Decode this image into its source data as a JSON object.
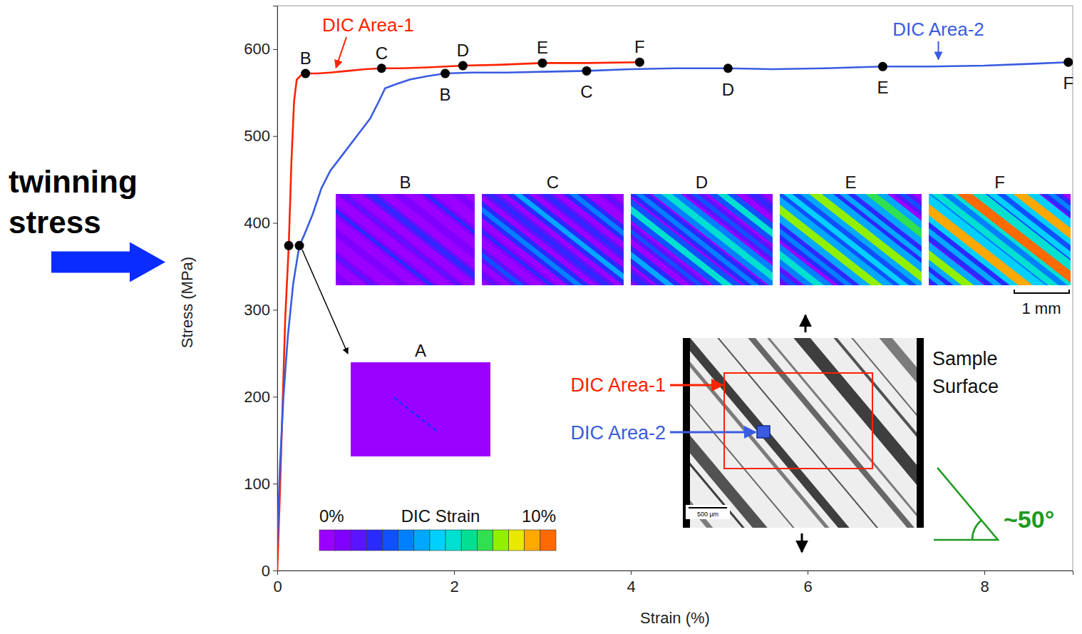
{
  "chart_data": {
    "type": "line",
    "xlabel": "Strain (%)",
    "ylabel": "Stress (MPa)",
    "xlim": [
      0,
      9
    ],
    "ylim": [
      0,
      650
    ],
    "xticks": [
      0,
      2,
      4,
      6,
      8
    ],
    "yticks": [
      0,
      100,
      200,
      300,
      400,
      500,
      600
    ],
    "series": [
      {
        "name": "DIC Area-1",
        "color": "#ff2200",
        "x": [
          0,
          0.03,
          0.06,
          0.09,
          0.13,
          0.16,
          0.19,
          0.22,
          0.27,
          0.32,
          0.45,
          0.6,
          0.8,
          1.0,
          1.18,
          1.4,
          1.7,
          2.1,
          2.5,
          3.0,
          3.5,
          4.1
        ],
        "values": [
          0,
          90,
          190,
          290,
          374,
          470,
          540,
          565,
          570,
          572,
          572,
          573,
          575,
          577,
          578,
          578,
          579,
          581,
          582,
          584,
          584,
          585
        ],
        "markers": [
          {
            "x": 0.13,
            "y": 374
          },
          {
            "label": "B",
            "x": 0.32,
            "y": 572
          },
          {
            "label": "C",
            "x": 1.18,
            "y": 578
          },
          {
            "label": "D",
            "x": 2.1,
            "y": 581
          },
          {
            "label": "E",
            "x": 3.0,
            "y": 584
          },
          {
            "label": "F",
            "x": 4.1,
            "y": 585
          }
        ]
      },
      {
        "name": "DIC Area-2",
        "color": "#3a5ce0",
        "x": [
          0,
          0.03,
          0.07,
          0.12,
          0.18,
          0.25,
          0.3,
          0.4,
          0.5,
          0.6,
          0.75,
          0.9,
          1.05,
          1.15,
          1.22,
          1.35,
          1.5,
          1.7,
          1.9,
          2.2,
          2.6,
          3.0,
          3.5,
          4.0,
          4.5,
          5.1,
          5.6,
          6.2,
          6.85,
          7.4,
          8.0,
          8.5,
          8.95
        ],
        "values": [
          30,
          120,
          200,
          270,
          330,
          374,
          385,
          410,
          440,
          460,
          480,
          500,
          520,
          540,
          555,
          560,
          565,
          569,
          572,
          573,
          573,
          574,
          575,
          577,
          578,
          578,
          577,
          578,
          580,
          580,
          581,
          583,
          585
        ],
        "markers": [
          {
            "x": 0.25,
            "y": 374
          },
          {
            "label": "B",
            "x": 1.9,
            "y": 572
          },
          {
            "label": "C",
            "x": 3.5,
            "y": 575
          },
          {
            "label": "D",
            "x": 5.1,
            "y": 578
          },
          {
            "label": "E",
            "x": 6.85,
            "y": 580
          },
          {
            "label": "F",
            "x": 8.95,
            "y": 585
          }
        ]
      }
    ],
    "annotations": [
      {
        "text": "twinning stress",
        "y": 355
      }
    ],
    "strain_maps": {
      "labels": [
        "A",
        "B",
        "C",
        "D",
        "E",
        "F"
      ],
      "scale_bar": "1 mm"
    },
    "colorbar": {
      "title": "DIC Strain",
      "range": [
        0,
        10
      ],
      "ticks": [
        {
          "value": 0,
          "label": "0%"
        },
        {
          "value": 10,
          "label": "10%"
        }
      ]
    },
    "micrograph": {
      "title": "Sample Surface",
      "area_labels": [
        "DIC Area-1",
        "DIC Area-2"
      ],
      "scale_bar": "500 µm",
      "angle": {
        "value": 50,
        "label": "~50°"
      }
    }
  }
}
